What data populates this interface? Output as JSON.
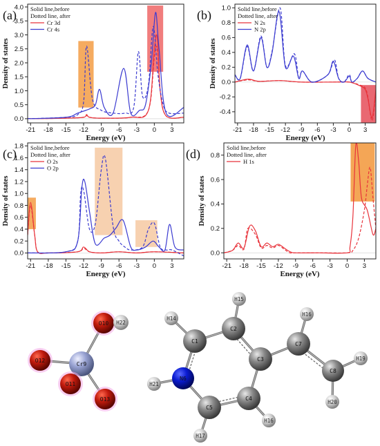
{
  "x_axis_label": "Energy (eV)",
  "y_axis_label": "Density of states",
  "x_ticks": [
    -21,
    -18,
    -15,
    -12,
    -9,
    -6,
    -3,
    0,
    3
  ],
  "legend_header": [
    "Solid line,before",
    "Dotted line, after"
  ],
  "colors": {
    "red": "#e8323a",
    "blue": "#3a3ad0",
    "orange": "#f39c44",
    "peach": "#f6c9a2",
    "pink": "#e8606a",
    "frame": "#222222"
  },
  "panels": [
    {
      "id": "a",
      "label": "(a)",
      "yticks": [
        "0.0",
        "0.5",
        "1.0",
        "1.5",
        "2.0",
        "2.5",
        "3.0",
        "3.5",
        "4.0"
      ],
      "legend": [
        {
          "name": "Cr 3d",
          "color": "#e8323a"
        },
        {
          "name": "Cr 4s",
          "color": "#3a3ad0"
        }
      ]
    },
    {
      "id": "b",
      "label": "(b)",
      "yticks": [
        "1.0",
        "0.8",
        "0.6",
        "0.4",
        "0.2",
        "0.0",
        "-0.2",
        "-0.4"
      ],
      "legend": [
        {
          "name": "N 2s",
          "color": "#e8323a"
        },
        {
          "name": "N 2p",
          "color": "#3a3ad0"
        }
      ]
    },
    {
      "id": "c",
      "label": "(c)",
      "yticks": [
        "1.8",
        "1.6",
        "1.4",
        "1.2",
        "1.0",
        "0.8",
        "0.6",
        "0.4",
        "0.2",
        "0.0"
      ],
      "legend": [
        {
          "name": "O 2s",
          "color": "#e8323a"
        },
        {
          "name": "O 2p",
          "color": "#3a3ad0"
        }
      ]
    },
    {
      "id": "d",
      "label": "(d)",
      "yticks": [
        "0.8",
        "0.6",
        "0.4",
        "0.2",
        "0.0"
      ],
      "legend": [
        {
          "name": "H 1s",
          "color": "#e8323a"
        }
      ]
    }
  ],
  "chart_data": [
    {
      "type": "line",
      "panel": "(a)",
      "xlabel": "Energy (eV)",
      "ylabel": "Density of states",
      "xlim": [
        -21.5,
        5
      ],
      "ylim": [
        -0.15,
        4.1
      ],
      "series": [
        {
          "name": "Cr 3d",
          "style": "solid",
          "color": "#e8323a",
          "x": [
            -21.5,
            -15,
            -12,
            -11.5,
            -11,
            -9,
            -4,
            -1,
            0,
            0.5,
            1,
            2,
            5
          ],
          "y": [
            0.0,
            0.02,
            0.05,
            0.15,
            0.05,
            0.02,
            0.05,
            0.3,
            2.5,
            2.9,
            1.0,
            0.1,
            0.05
          ]
        },
        {
          "name": "Cr 3d",
          "style": "dotted",
          "color": "#e8323a",
          "x": [
            -21.5,
            -15,
            -12,
            -11.5,
            -11,
            -9,
            -4,
            -1,
            0,
            0.5,
            1,
            2,
            5
          ],
          "y": [
            0.0,
            0.02,
            0.05,
            0.12,
            0.05,
            0.02,
            0.05,
            0.3,
            2.2,
            2.5,
            1.0,
            0.1,
            0.05
          ]
        },
        {
          "name": "Cr 4s",
          "style": "solid",
          "color": "#3a3ad0",
          "x": [
            -21.5,
            -15,
            -13,
            -11,
            -10,
            -9.3,
            -8.5,
            -7,
            -5.2,
            -4,
            -2.5,
            -1.5,
            -0.5,
            0.2,
            0.8,
            2,
            5
          ],
          "y": [
            0.0,
            0.05,
            0.2,
            0.35,
            0.5,
            1.05,
            0.4,
            0.2,
            1.8,
            0.2,
            0.3,
            0.5,
            2.0,
            3.8,
            2.5,
            0.2,
            0.4
          ]
        },
        {
          "name": "Cr 4s",
          "style": "dotted",
          "color": "#3a3ad0",
          "x": [
            -21.5,
            -15,
            -13,
            -12,
            -11.5,
            -10.5,
            -9,
            -7,
            -5,
            -3.5,
            -2.7,
            -2,
            -1,
            -0.2,
            0.6,
            1.5,
            2.5,
            5
          ],
          "y": [
            0.0,
            0.05,
            0.15,
            0.6,
            2.6,
            0.7,
            0.3,
            0.2,
            0.2,
            0.4,
            2.4,
            0.8,
            1.2,
            3.3,
            1.6,
            0.5,
            0.2,
            0.2
          ]
        }
      ]
    },
    {
      "type": "line",
      "panel": "(b)",
      "xlabel": "Energy (eV)",
      "ylabel": "Density of states",
      "xlim": [
        -21.5,
        5
      ],
      "ylim": [
        -0.55,
        1.05
      ],
      "series": [
        {
          "name": "N 2s",
          "style": "solid",
          "color": "#e8323a",
          "x": [
            -21.5,
            -19,
            -17,
            -13,
            -9,
            -3,
            0,
            2,
            3,
            3.5,
            4.3,
            5
          ],
          "y": [
            0.0,
            0.04,
            0.01,
            0.02,
            0.0,
            0.0,
            0.0,
            -0.05,
            -0.1,
            -0.22,
            -0.48,
            -0.1
          ]
        },
        {
          "name": "N 2s",
          "style": "dotted",
          "color": "#e8323a",
          "x": [
            -21.5,
            -19,
            -17,
            -13,
            -9,
            -3,
            0,
            2,
            3,
            3.5,
            4.3,
            5
          ],
          "y": [
            0.0,
            0.03,
            0.01,
            0.02,
            0.0,
            0.0,
            0.0,
            -0.04,
            -0.08,
            -0.2,
            -0.52,
            -0.12
          ]
        },
        {
          "name": "N 2p",
          "style": "solid",
          "color": "#3a3ad0",
          "x": [
            -21.5,
            -20.5,
            -19.2,
            -18,
            -16.6,
            -15.5,
            -14.5,
            -13.2,
            -12,
            -10.5,
            -9.5,
            -8.8,
            -7,
            -4,
            -3,
            -2,
            -1,
            0,
            0.5,
            1.5,
            2.5,
            3.5,
            5
          ],
          "y": [
            0.1,
            0.05,
            0.5,
            0.15,
            0.6,
            0.2,
            0.4,
            0.95,
            0.2,
            0.35,
            0.05,
            0.15,
            0.0,
            0.1,
            0.28,
            0.05,
            0.0,
            0.08,
            0.0,
            0.05,
            0.15,
            0.05,
            0.0
          ]
        },
        {
          "name": "N 2p",
          "style": "dotted",
          "color": "#3a3ad0",
          "x": [
            -21.5,
            -20.5,
            -19.2,
            -18,
            -16.6,
            -15.5,
            -14.5,
            -13,
            -12,
            -10.3,
            -9.5,
            -8.8,
            -7,
            -4,
            -2.8,
            -2,
            -1,
            0,
            0.5,
            1.5,
            2.5,
            3.5,
            5
          ],
          "y": [
            0.1,
            0.05,
            0.48,
            0.15,
            0.62,
            0.2,
            0.42,
            1.0,
            0.22,
            0.38,
            0.05,
            0.15,
            0.0,
            0.1,
            0.3,
            0.05,
            0.0,
            0.1,
            0.0,
            0.05,
            0.15,
            0.05,
            0.0
          ]
        }
      ]
    },
    {
      "type": "line",
      "panel": "(c)",
      "xlabel": "Energy (eV)",
      "ylabel": "Density of states",
      "xlim": [
        -21.5,
        5
      ],
      "ylim": [
        -0.1,
        1.85
      ],
      "series": [
        {
          "name": "O 2s",
          "style": "solid",
          "color": "#e8323a",
          "x": [
            -21.5,
            -21,
            -20.3,
            -19.8,
            -18,
            -13,
            -12,
            -11,
            -9,
            -6,
            -3,
            0,
            5
          ],
          "y": [
            0.3,
            0.85,
            0.3,
            0.02,
            0.0,
            0.02,
            0.1,
            0.02,
            0.0,
            0.02,
            0.0,
            0.02,
            0.0
          ]
        },
        {
          "name": "O 2s",
          "style": "dotted",
          "color": "#e8323a",
          "x": [
            -21.5,
            -21,
            -20.3,
            -19.8,
            -18,
            -13,
            -12,
            -11,
            -9,
            -6,
            -3,
            0,
            5
          ],
          "y": [
            0.3,
            0.8,
            0.3,
            0.02,
            0.0,
            0.02,
            0.08,
            0.02,
            0.0,
            0.02,
            0.0,
            0.02,
            0.0
          ]
        },
        {
          "name": "O 2p",
          "style": "solid",
          "color": "#3a3ad0",
          "x": [
            -21.5,
            -15,
            -13,
            -12.3,
            -11.8,
            -11,
            -10,
            -8.5,
            -7.5,
            -6.5,
            -5.3,
            -4,
            -3,
            -1.5,
            -0.2,
            0.8,
            1.8,
            2.6,
            3.5,
            5
          ],
          "y": [
            0.0,
            0.02,
            0.2,
            1.1,
            1.2,
            0.7,
            0.15,
            0.25,
            0.3,
            0.42,
            0.55,
            0.1,
            0.05,
            0.1,
            0.2,
            0.1,
            0.05,
            0.48,
            0.1,
            0.05
          ]
        },
        {
          "name": "O 2p",
          "style": "dotted",
          "color": "#3a3ad0",
          "x": [
            -21.5,
            -15,
            -13,
            -12.5,
            -12,
            -11,
            -10,
            -9,
            -8.3,
            -7,
            -6,
            -5,
            -4,
            -2,
            -1,
            0,
            1,
            2,
            3,
            5
          ],
          "y": [
            0.0,
            0.02,
            0.2,
            1.0,
            1.05,
            0.4,
            0.5,
            1.4,
            1.58,
            0.45,
            0.2,
            0.1,
            0.05,
            0.1,
            0.4,
            0.5,
            0.1,
            0.05,
            0.05,
            -0.05
          ]
        }
      ]
    },
    {
      "type": "line",
      "panel": "(d)",
      "xlabel": "Energy (eV)",
      "ylabel": "Density of states",
      "xlim": [
        -21.5,
        5
      ],
      "ylim": [
        -0.05,
        0.9
      ],
      "series": [
        {
          "name": "H 1s",
          "style": "solid",
          "color": "#e8323a",
          "x": [
            -21.5,
            -20,
            -19,
            -18,
            -17,
            -16,
            -15,
            -14,
            -13,
            -12,
            -11,
            -10,
            -9,
            -5,
            0,
            0.5,
            1,
            1.5,
            2,
            2.5,
            3.5,
            4.5,
            5
          ],
          "y": [
            0.0,
            0.02,
            0.08,
            0.04,
            0.22,
            0.18,
            0.05,
            0.08,
            0.05,
            0.07,
            0.04,
            0.01,
            0.0,
            0.0,
            0.0,
            0.05,
            0.3,
            0.88,
            0.75,
            0.45,
            0.35,
            0.15,
            0.2
          ]
        },
        {
          "name": "H 1s",
          "style": "dotted",
          "color": "#e8323a",
          "x": [
            -21.5,
            -20,
            -19,
            -18,
            -17.3,
            -16,
            -15,
            -14,
            -13,
            -12,
            -11,
            -10,
            -9,
            -5,
            0,
            1,
            2,
            3,
            3.5,
            4,
            4.5,
            5
          ],
          "y": [
            0.0,
            0.02,
            0.06,
            0.03,
            0.2,
            0.15,
            0.04,
            0.06,
            0.04,
            0.06,
            0.03,
            0.0,
            0.0,
            0.0,
            0.0,
            0.02,
            0.12,
            0.35,
            0.55,
            0.7,
            0.45,
            0.2
          ]
        }
      ]
    }
  ],
  "molecule_left": {
    "atoms": [
      {
        "id": "Cr9",
        "label": "Cr9",
        "color": "#9aa4d4"
      },
      {
        "id": "O10",
        "label": "O10",
        "color": "#c21b0e"
      },
      {
        "id": "O11",
        "label": "O11",
        "color": "#c21b0e"
      },
      {
        "id": "O12",
        "label": "O12",
        "color": "#c21b0e"
      },
      {
        "id": "O13",
        "label": "O13",
        "color": "#c21b0e"
      },
      {
        "id": "H22",
        "label": "H22",
        "color": "#d9d9d9"
      }
    ]
  },
  "molecule_right": {
    "atoms": [
      {
        "id": "C1",
        "label": "C1",
        "color": "#8a8a8a"
      },
      {
        "id": "C2",
        "label": "C2",
        "color": "#8a8a8a"
      },
      {
        "id": "C3",
        "label": "C3",
        "color": "#8a8a8a"
      },
      {
        "id": "C4",
        "label": "C4",
        "color": "#8a8a8a"
      },
      {
        "id": "C5",
        "label": "C5",
        "color": "#8a8a8a"
      },
      {
        "id": "N6",
        "label": "N6",
        "color": "#0a1bd1"
      },
      {
        "id": "C7",
        "label": "C7",
        "color": "#8a8a8a"
      },
      {
        "id": "C8",
        "label": "C8",
        "color": "#8a8a8a"
      },
      {
        "id": "H14",
        "label": "H14",
        "color": "#d9d9d9"
      },
      {
        "id": "H15",
        "label": "H15",
        "color": "#d9d9d9"
      },
      {
        "id": "H16a",
        "label": "H16",
        "color": "#d9d9d9"
      },
      {
        "id": "H16b",
        "label": "H16",
        "color": "#d9d9d9"
      },
      {
        "id": "H17",
        "label": "H17",
        "color": "#d9d9d9"
      },
      {
        "id": "H19",
        "label": "H19",
        "color": "#d9d9d9"
      },
      {
        "id": "H20",
        "label": "H20",
        "color": "#d9d9d9"
      },
      {
        "id": "H21",
        "label": "H21",
        "color": "#d9d9d9"
      }
    ]
  }
}
